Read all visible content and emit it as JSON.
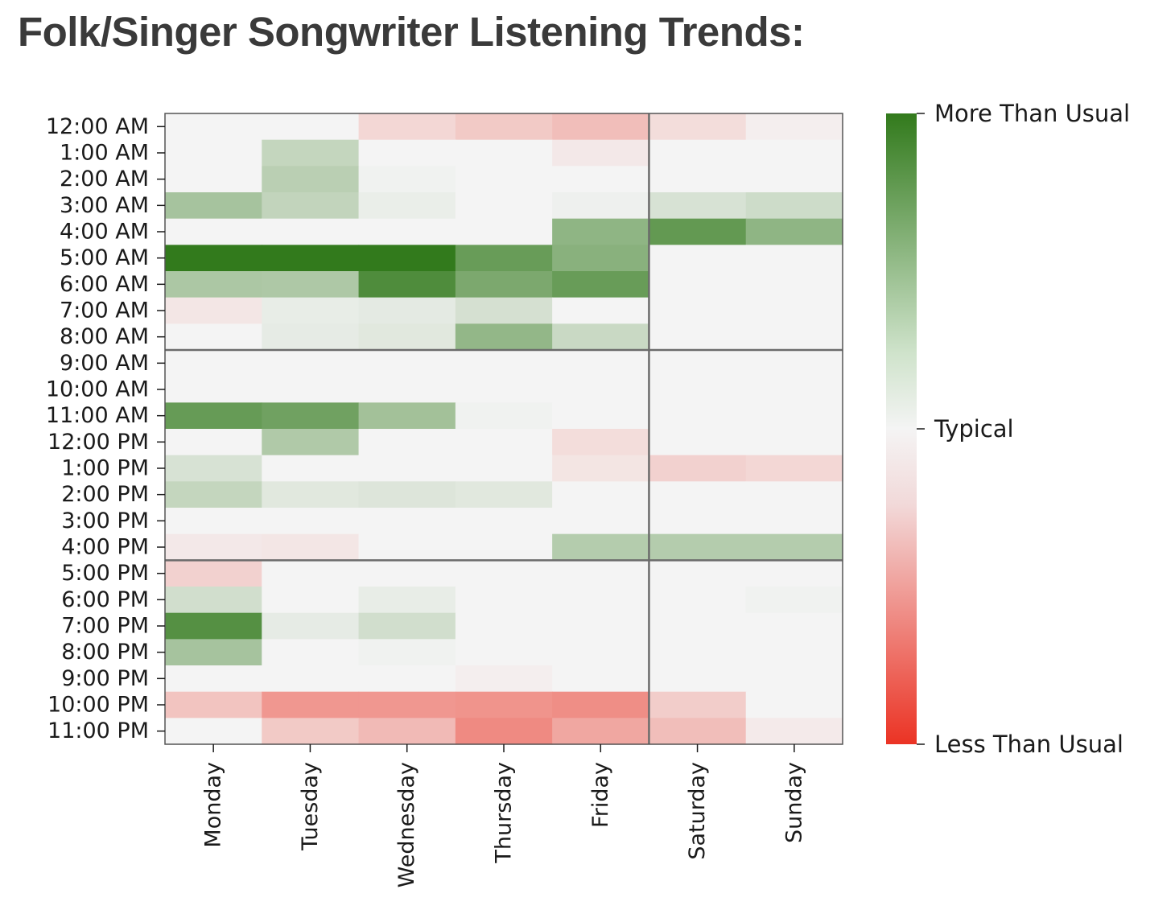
{
  "header": {
    "title": "Folk/Singer Songwriter Listening Trends:"
  },
  "chart_data": {
    "type": "heatmap",
    "title": "Folk/Singer Songwriter Listening Trends:",
    "xlabel": "",
    "ylabel": "",
    "x_categories": [
      "Monday",
      "Tuesday",
      "Wednesday",
      "Thursday",
      "Friday",
      "Saturday",
      "Sunday"
    ],
    "y_categories": [
      "12:00 AM",
      "1:00 AM",
      "2:00 AM",
      "3:00 AM",
      "4:00 AM",
      "5:00 AM",
      "6:00 AM",
      "7:00 AM",
      "8:00 AM",
      "9:00 AM",
      "10:00 AM",
      "11:00 AM",
      "12:00 PM",
      "1:00 PM",
      "2:00 PM",
      "3:00 PM",
      "4:00 PM",
      "5:00 PM",
      "6:00 PM",
      "7:00 PM",
      "8:00 PM",
      "9:00 PM",
      "10:00 PM",
      "11:00 PM"
    ],
    "value_range": [
      -1,
      1
    ],
    "values": [
      [
        0.0,
        0.0,
        -0.15,
        -0.22,
        -0.28,
        -0.12,
        -0.03
      ],
      [
        0.0,
        0.25,
        0.0,
        0.0,
        -0.06,
        0.0,
        0.0
      ],
      [
        0.0,
        0.3,
        0.02,
        0.0,
        0.0,
        0.0,
        0.0
      ],
      [
        0.4,
        0.26,
        0.05,
        0.0,
        0.03,
        0.15,
        0.2
      ],
      [
        0.0,
        0.0,
        0.0,
        0.0,
        0.52,
        0.75,
        0.52
      ],
      [
        1.0,
        1.0,
        1.0,
        0.72,
        0.55,
        0.0,
        0.0
      ],
      [
        0.37,
        0.36,
        0.85,
        0.62,
        0.72,
        0.0,
        0.0
      ],
      [
        -0.07,
        0.06,
        0.08,
        0.16,
        0.0,
        0.0,
        0.0
      ],
      [
        0.0,
        0.07,
        0.1,
        0.5,
        0.22,
        0.0,
        0.0
      ],
      [
        0.0,
        0.0,
        0.0,
        0.0,
        0.0,
        0.0,
        0.0
      ],
      [
        0.0,
        0.0,
        0.0,
        0.0,
        0.0,
        0.0,
        0.0
      ],
      [
        0.73,
        0.68,
        0.42,
        0.02,
        0.0,
        0.0,
        0.0
      ],
      [
        0.0,
        0.35,
        0.0,
        0.0,
        -0.12,
        0.0,
        0.0
      ],
      [
        0.15,
        0.0,
        0.0,
        0.0,
        -0.08,
        -0.18,
        -0.15
      ],
      [
        0.25,
        0.1,
        0.12,
        0.1,
        0.0,
        0.0,
        0.0
      ],
      [
        0.0,
        0.0,
        0.0,
        0.0,
        0.0,
        0.0,
        0.0
      ],
      [
        -0.06,
        -0.07,
        0.0,
        0.0,
        0.33,
        0.33,
        0.33
      ],
      [
        -0.18,
        0.0,
        0.0,
        0.0,
        0.0,
        0.0,
        0.0
      ],
      [
        0.18,
        0.0,
        0.06,
        0.0,
        0.0,
        0.0,
        0.02
      ],
      [
        0.82,
        0.07,
        0.18,
        0.0,
        0.0,
        0.0,
        0.0
      ],
      [
        0.4,
        0.0,
        0.02,
        0.0,
        0.0,
        0.0,
        0.0
      ],
      [
        0.0,
        0.0,
        0.0,
        -0.03,
        0.0,
        0.0,
        0.0
      ],
      [
        -0.25,
        -0.48,
        -0.48,
        -0.5,
        -0.53,
        -0.2,
        0.0
      ],
      [
        0.0,
        -0.22,
        -0.3,
        -0.55,
        -0.4,
        -0.28,
        -0.05
      ]
    ],
    "group_dividers": {
      "after_days": [
        "Friday"
      ],
      "after_hours": [
        "8:00 AM",
        "4:00 PM"
      ]
    },
    "colorbar": {
      "ticks": [
        {
          "label": "More Than Usual",
          "value": 1
        },
        {
          "label": "Typical",
          "value": 0
        },
        {
          "label": "Less Than Usual",
          "value": -1
        }
      ],
      "colors": {
        "high": "#327a1c",
        "mid": "#f4f4f4",
        "low": "#eb3324"
      }
    },
    "grid": false,
    "legend": "right"
  }
}
